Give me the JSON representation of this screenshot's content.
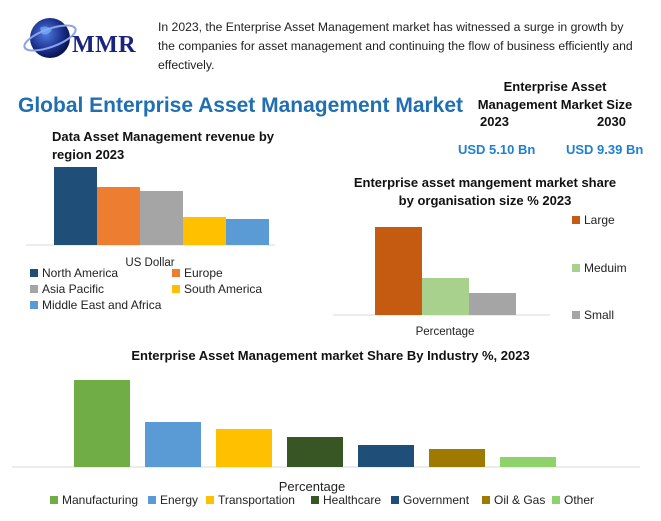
{
  "brand": {
    "logo_text": "MMR"
  },
  "intro": "In 2023, the Enterprise Asset Management market has witnessed a surge in growth by the companies for asset management and continuing the flow of business efficiently and effectively.",
  "main_title": "Global Enterprise Asset Management Market",
  "market_size": {
    "title_line1": "Enterprise Asset",
    "title_line2": "Management Market Size",
    "year_start": "2023",
    "year_end": "2030",
    "value_start": "USD 5.10 Bn",
    "value_end": "USD 9.39 Bn"
  },
  "chart_data": [
    {
      "type": "bar",
      "title": "Data Asset Management revenue by region 2023",
      "xlabel": "US Dollar",
      "series": [
        {
          "name": "North America",
          "value": 78,
          "color": "#1f4e79"
        },
        {
          "name": "Europe",
          "value": 58,
          "color": "#ed7d31"
        },
        {
          "name": "Asia Pacific",
          "value": 54,
          "color": "#a5a5a5"
        },
        {
          "name": "South America",
          "value": 28,
          "color": "#ffc000"
        },
        {
          "name": "Middle East and Africa",
          "value": 26,
          "color": "#5b9bd5"
        }
      ],
      "legend_position": "bottom"
    },
    {
      "type": "bar",
      "title": "Enterprise asset mangement market share by organisation size % 2023",
      "xlabel": "Percentage",
      "series": [
        {
          "name": "Large",
          "value": 88,
          "color": "#c55a11"
        },
        {
          "name": "Meduim",
          "value": 37,
          "color": "#a9d18e"
        },
        {
          "name": "Small",
          "value": 22,
          "color": "#a5a5a5"
        }
      ],
      "legend_position": "right"
    },
    {
      "type": "bar",
      "title": "Enterprise Asset Management market Share By Industry %, 2023",
      "xlabel": "Percentage",
      "series": [
        {
          "name": "Manufacturing",
          "value": 87,
          "color": "#70ad47"
        },
        {
          "name": "Energy",
          "value": 45,
          "color": "#5b9bd5"
        },
        {
          "name": "Transportation",
          "value": 38,
          "color": "#ffc000"
        },
        {
          "name": "Healthcare",
          "value": 30,
          "color": "#375623"
        },
        {
          "name": "Government",
          "value": 22,
          "color": "#1f4e79"
        },
        {
          "name": "Oil & Gas",
          "value": 18,
          "color": "#9e7b00"
        },
        {
          "name": "Other",
          "value": 10,
          "color": "#8fd16a"
        }
      ],
      "legend_position": "bottom"
    }
  ]
}
